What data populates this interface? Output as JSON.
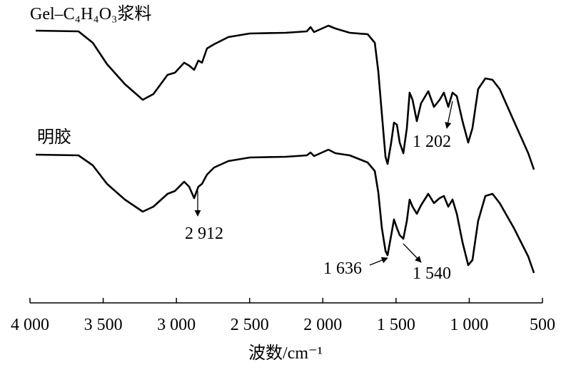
{
  "chart_data": {
    "type": "line",
    "x_label": "波数/cm⁻¹",
    "xlim": [
      4000,
      500
    ],
    "xticks": [
      {
        "value": 4000,
        "label": "4 000"
      },
      {
        "value": 3500,
        "label": "3 500"
      },
      {
        "value": 3000,
        "label": "3 000"
      },
      {
        "value": 2500,
        "label": "2 500"
      },
      {
        "value": 2000,
        "label": "2 000"
      },
      {
        "value": 1500,
        "label": "1 500"
      },
      {
        "value": 1000,
        "label": "1 000"
      },
      500
    ],
    "ylim": [
      0,
      100
    ],
    "x": [
      3961,
      3669,
      3571,
      3474,
      3352,
      3230,
      3157,
      3060,
      3010,
      2947,
      2913,
      2879,
      2850,
      2825,
      2791,
      2742,
      2645,
      2499,
      2255,
      2109,
      2084,
      2060,
      1962,
      1914,
      1816,
      1694,
      1645,
      1621,
      1597,
      1572,
      1558,
      1533,
      1514,
      1494,
      1475,
      1450,
      1426,
      1407,
      1387,
      1358,
      1329,
      1280,
      1241,
      1202,
      1173,
      1143,
      1114,
      1085,
      1046,
      1007,
      978,
      939,
      890,
      841,
      792,
      695,
      597,
      558
    ],
    "series": [
      {
        "name": "Gel–C₄H₄O₃浆料",
        "color": "#000000",
        "values": [
          94.25,
          94,
          90,
          82.5,
          75.5,
          70,
          72,
          78.75,
          79.5,
          83,
          82,
          80.5,
          83.75,
          83,
          88,
          89.5,
          92,
          93.25,
          93.5,
          94,
          95.5,
          93.75,
          96,
          95,
          93.5,
          93,
          90,
          80,
          65,
          50,
          47.5,
          55,
          62,
          61.25,
          55,
          51.25,
          60,
          72.5,
          70,
          62.5,
          68.75,
          73,
          67.5,
          70,
          72.5,
          67.5,
          72.5,
          71.25,
          62.5,
          55,
          60,
          73.75,
          77.5,
          77,
          73.75,
          62.5,
          51.25,
          45.5
        ]
      },
      {
        "name": "明胶",
        "color": "#000000",
        "values": [
          50.75,
          50.5,
          47,
          40.5,
          35,
          30.75,
          32.5,
          37,
          38,
          41.25,
          39.5,
          35.5,
          39.5,
          40.5,
          43.75,
          46.25,
          48.5,
          49.75,
          50,
          50.5,
          51.5,
          50.25,
          52.5,
          51.25,
          50.5,
          48,
          45,
          37.5,
          25,
          17,
          15.5,
          22.5,
          28,
          25,
          22.5,
          21.25,
          27.5,
          35,
          32.5,
          30,
          33,
          37,
          33.75,
          35.5,
          36.25,
          32.5,
          35,
          30,
          20,
          12,
          13.75,
          27.5,
          36.25,
          37,
          33.75,
          25,
          15,
          9.25
        ]
      }
    ],
    "annotations": [
      "2 912",
      "1 636",
      "1 540",
      "1 202"
    ]
  }
}
